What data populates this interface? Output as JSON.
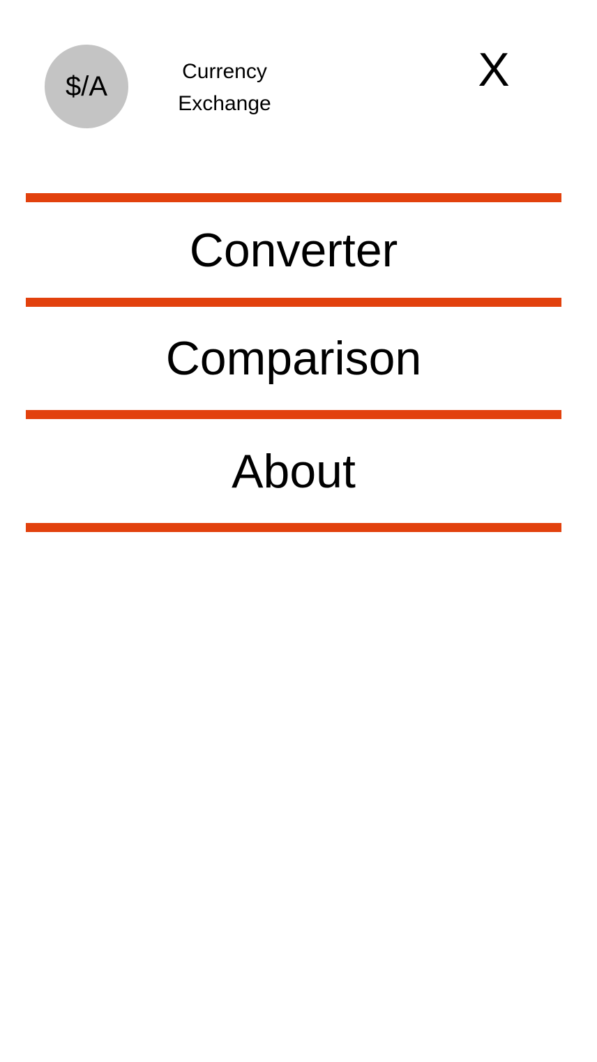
{
  "header": {
    "logo_text": "$/A",
    "title_line1": "Currency",
    "title_line2": "Exchange",
    "close_label": "X"
  },
  "menu": {
    "items": [
      {
        "label": "Converter"
      },
      {
        "label": "Comparison"
      },
      {
        "label": "About"
      }
    ]
  },
  "colors": {
    "accent": "#e2410d",
    "logo_background": "#c4c4c4",
    "background": "#ffffff",
    "text": "#000000"
  }
}
